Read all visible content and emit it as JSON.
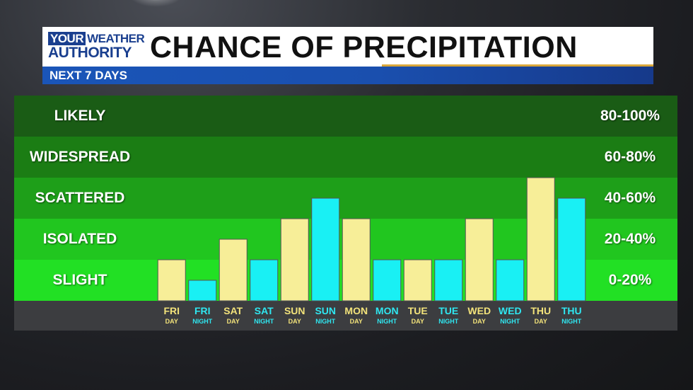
{
  "header": {
    "logo_line1_a": "YOUR",
    "logo_line1_b": "WEATHER",
    "logo_line2": "AUTHORITY",
    "title": "CHANCE OF PRECIPITATION",
    "subtitle": "NEXT 7 DAYS"
  },
  "colors": {
    "day_bar": "#f7ee98",
    "night_bar": "#19f0f4",
    "header_blue": "#1a55b8",
    "accent_gold": "#d9a73a"
  },
  "bands": [
    {
      "label": "LIKELY",
      "range": "80-100%",
      "color": "#1a5c15"
    },
    {
      "label": "WIDESPREAD",
      "range": "60-80%",
      "color": "#1b7d14"
    },
    {
      "label": "SCATTERED",
      "range": "40-60%",
      "color": "#1e9f19"
    },
    {
      "label": "ISOLATED",
      "range": "20-40%",
      "color": "#21c61f"
    },
    {
      "label": "SLIGHT",
      "range": "0-20%",
      "color": "#22e024"
    }
  ],
  "chart_data": {
    "type": "bar",
    "title": "CHANCE OF PRECIPITATION",
    "ylim": [
      0,
      100
    ],
    "categories": [
      {
        "day": "FRI",
        "period": "DAY"
      },
      {
        "day": "FRI",
        "period": "NIGHT"
      },
      {
        "day": "SAT",
        "period": "DAY"
      },
      {
        "day": "SAT",
        "period": "NIGHT"
      },
      {
        "day": "SUN",
        "period": "DAY"
      },
      {
        "day": "SUN",
        "period": "NIGHT"
      },
      {
        "day": "MON",
        "period": "DAY"
      },
      {
        "day": "MON",
        "period": "NIGHT"
      },
      {
        "day": "TUE",
        "period": "DAY"
      },
      {
        "day": "TUE",
        "period": "NIGHT"
      },
      {
        "day": "WED",
        "period": "DAY"
      },
      {
        "day": "WED",
        "period": "NIGHT"
      },
      {
        "day": "THU",
        "period": "DAY"
      },
      {
        "day": "THU",
        "period": "NIGHT"
      }
    ],
    "values": [
      20,
      10,
      30,
      20,
      40,
      50,
      40,
      20,
      20,
      20,
      40,
      20,
      60,
      50
    ]
  }
}
